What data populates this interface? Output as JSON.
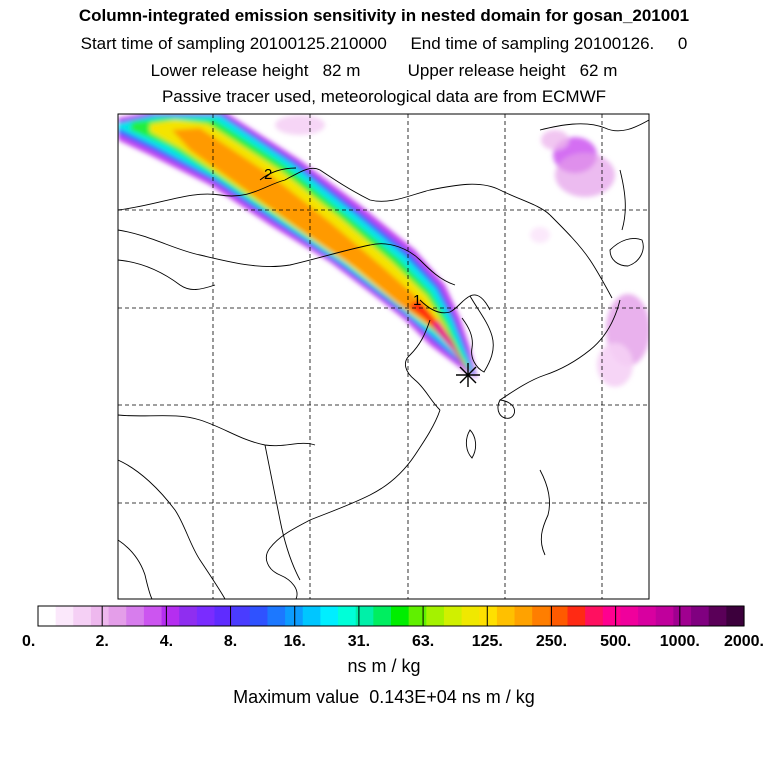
{
  "header": {
    "title": "Column-integrated emission sensitivity in nested domain for gosan_201001",
    "sampling_line": "Start time of sampling 20100125.210000     End time of sampling 20100126.     0",
    "release_line": "Lower release height   82 m          Upper release height   62 m",
    "tracer_line": "Passive tracer used, meteorological data are from ECMWF"
  },
  "chart_data": {
    "type": "heatmap",
    "colorbar": {
      "tick_labels": [
        "0.",
        "2.",
        "4.",
        "8.",
        "16.",
        "31.",
        "63.",
        "125.",
        "250.",
        "500.",
        "1000.",
        "2000."
      ],
      "units": "ns m / kg",
      "colors": [
        "#ffffff",
        "#fbe8fb",
        "#f5d0f5",
        "#eeb8ee",
        "#e49ee9",
        "#d77ded",
        "#cc55f0",
        "#b52ef0",
        "#8f2ef0",
        "#7a2cff",
        "#5f2cff",
        "#4a3cff",
        "#2f52ff",
        "#1c78ff",
        "#0c9cff",
        "#00c6ff",
        "#00eeff",
        "#00ffd8",
        "#00f0a8",
        "#00ee60",
        "#00ee00",
        "#60f000",
        "#a4f200",
        "#d0f000",
        "#f0e800",
        "#ffe000",
        "#ffc000",
        "#ffa200",
        "#ff7e00",
        "#ff5a00",
        "#ff2a14",
        "#ff1060",
        "#ff0090",
        "#f0009c",
        "#d800a0",
        "#c0009c",
        "#a00090",
        "#800080",
        "#5a0058",
        "#3c003c"
      ]
    },
    "max_value_text": "Maximum value  0.143E+04 ns m / kg",
    "markers": [
      "1",
      "2"
    ],
    "receptor_marker": "asterisk"
  }
}
